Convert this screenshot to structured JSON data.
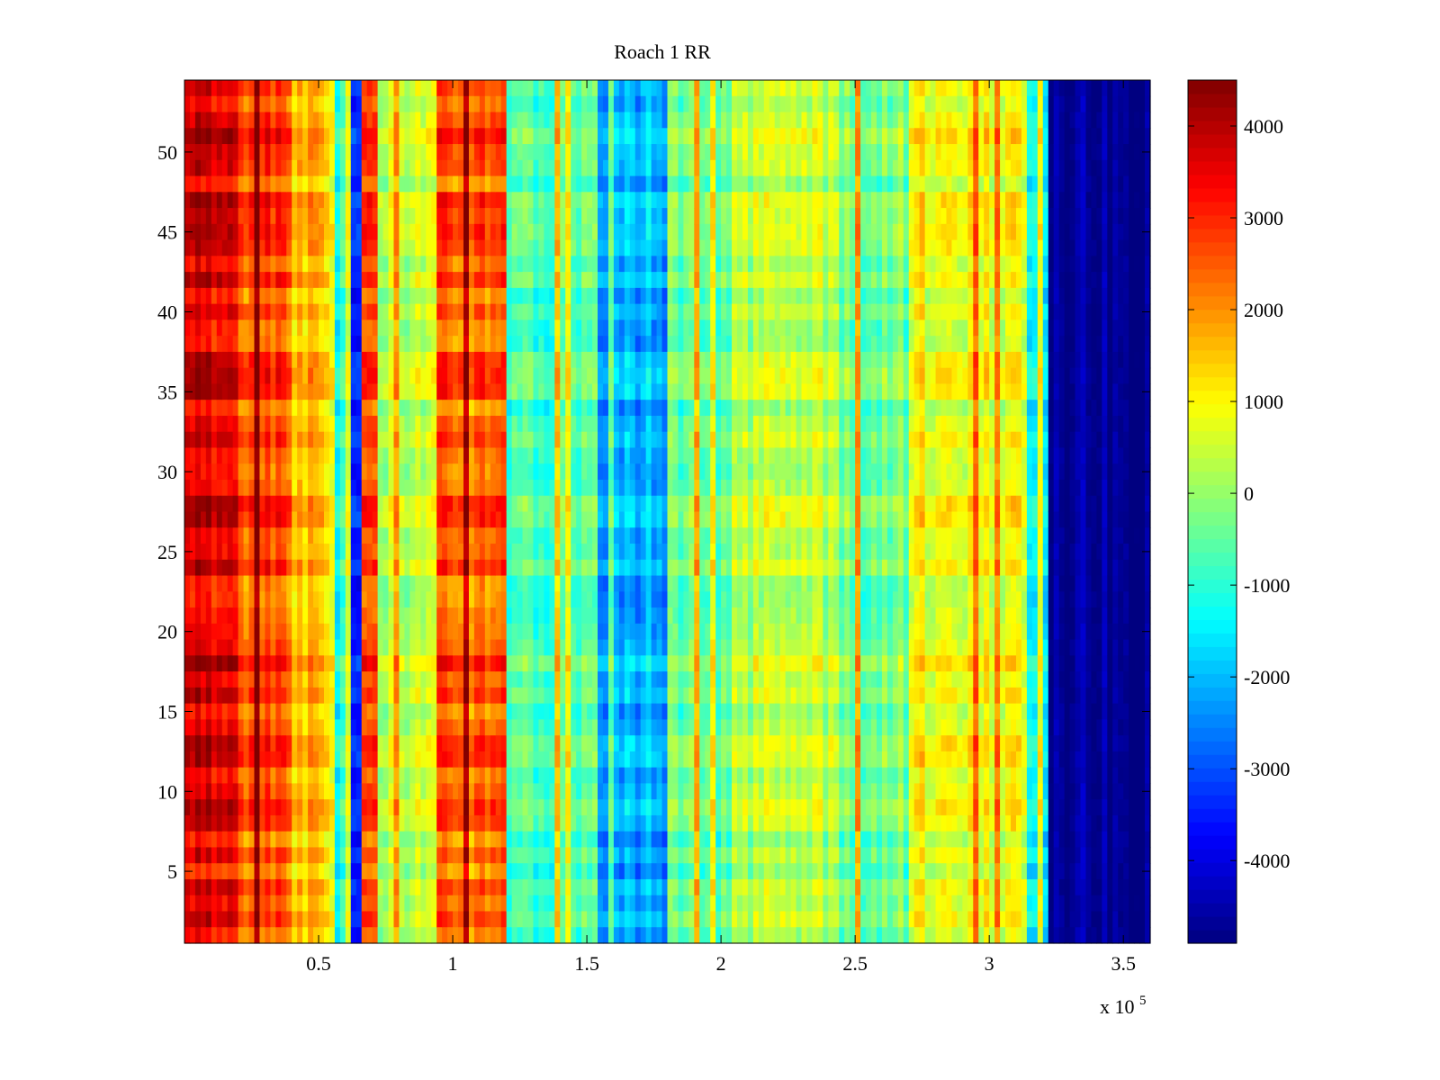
{
  "chart_data": {
    "type": "heatmap",
    "title": "Roach 1 RR",
    "xlabel": "",
    "ylabel": "",
    "x_multiplier_label": "x 10",
    "x_multiplier_exponent": "5",
    "xlim": [
      0,
      3.6
    ],
    "ylim": [
      0.5,
      54.5
    ],
    "x_ticks": [
      {
        "value": 0.5,
        "label": "0.5"
      },
      {
        "value": 1,
        "label": "1"
      },
      {
        "value": 1.5,
        "label": "1.5"
      },
      {
        "value": 2,
        "label": "2"
      },
      {
        "value": 2.5,
        "label": "2.5"
      },
      {
        "value": 3,
        "label": "3"
      },
      {
        "value": 3.5,
        "label": "3.5"
      }
    ],
    "y_ticks": [
      {
        "value": 5,
        "label": "5"
      },
      {
        "value": 10,
        "label": "10"
      },
      {
        "value": 15,
        "label": "15"
      },
      {
        "value": 20,
        "label": "20"
      },
      {
        "value": 25,
        "label": "25"
      },
      {
        "value": 30,
        "label": "30"
      },
      {
        "value": 35,
        "label": "35"
      },
      {
        "value": 40,
        "label": "40"
      },
      {
        "value": 45,
        "label": "45"
      },
      {
        "value": 50,
        "label": "50"
      }
    ],
    "colormap": "jet",
    "color_range": [
      -4900,
      4500
    ],
    "colorbar_ticks": [
      {
        "value": 4000,
        "label": "4000"
      },
      {
        "value": 3000,
        "label": "3000"
      },
      {
        "value": 2000,
        "label": "2000"
      },
      {
        "value": 1000,
        "label": "1000"
      },
      {
        "value": 0,
        "label": "0"
      },
      {
        "value": -1000,
        "label": "-1000"
      },
      {
        "value": -2000,
        "label": "-2000"
      },
      {
        "value": -3000,
        "label": "-3000"
      },
      {
        "value": -4000,
        "label": "-4000"
      }
    ],
    "rows": 54,
    "column_profile": [
      {
        "x_start": 0.0,
        "x_end": 0.2,
        "value": 3700
      },
      {
        "x_start": 0.2,
        "x_end": 0.4,
        "value": 2600
      },
      {
        "x_start": 0.4,
        "x_end": 0.55,
        "value": 1500
      },
      {
        "x_start": 0.55,
        "x_end": 0.62,
        "value": -1000
      },
      {
        "x_start": 0.62,
        "x_end": 0.66,
        "value": -3200
      },
      {
        "x_start": 0.66,
        "x_end": 0.72,
        "value": 3000
      },
      {
        "x_start": 0.72,
        "x_end": 0.95,
        "value": 300
      },
      {
        "x_start": 0.95,
        "x_end": 1.2,
        "value": 2300
      },
      {
        "x_start": 1.2,
        "x_end": 1.55,
        "value": -600
      },
      {
        "x_start": 1.55,
        "x_end": 1.8,
        "value": -2100
      },
      {
        "x_start": 1.8,
        "x_end": 2.05,
        "value": -500
      },
      {
        "x_start": 2.05,
        "x_end": 2.45,
        "value": 300
      },
      {
        "x_start": 2.45,
        "x_end": 2.7,
        "value": -300
      },
      {
        "x_start": 2.7,
        "x_end": 2.85,
        "value": 900
      },
      {
        "x_start": 2.85,
        "x_end": 3.15,
        "value": 800
      },
      {
        "x_start": 3.15,
        "x_end": 3.23,
        "value": -1200
      },
      {
        "x_start": 3.23,
        "x_end": 3.6,
        "value": -4700
      }
    ]
  }
}
